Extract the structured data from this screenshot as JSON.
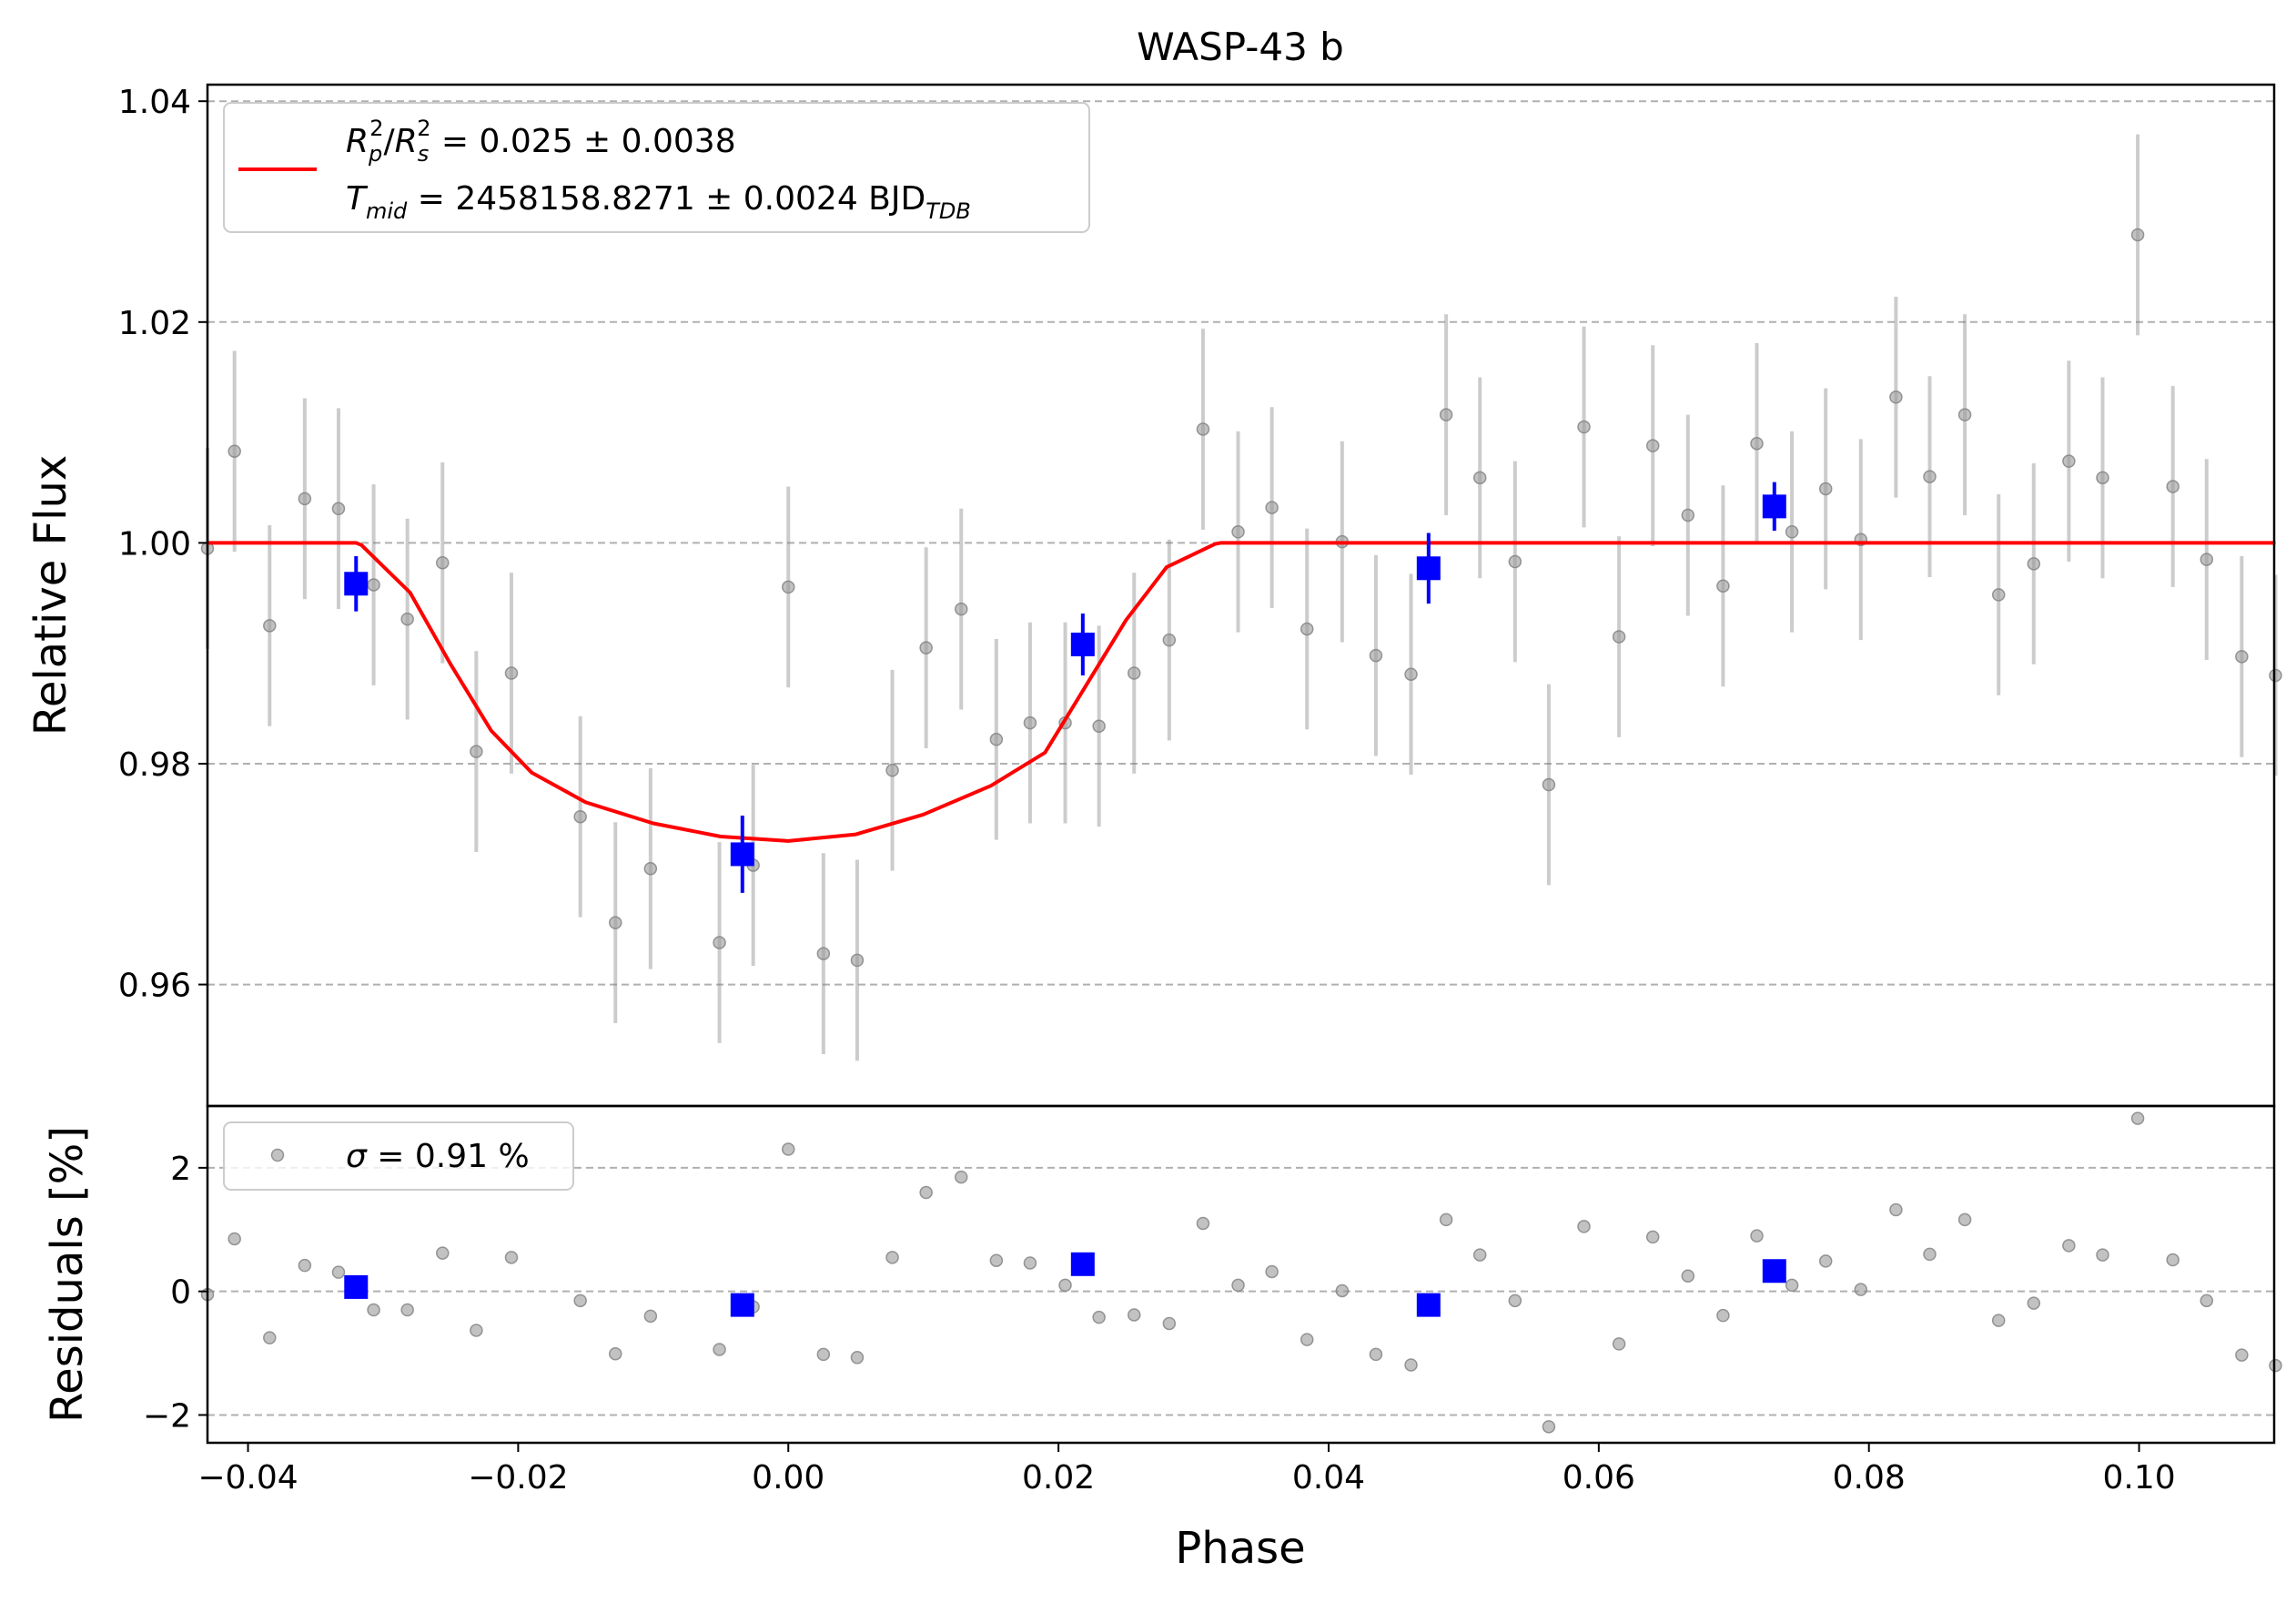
{
  "chart_data": [
    {
      "type": "scatter",
      "panel": "main",
      "title": "WASP-43 b",
      "xlabel": "",
      "ylabel": "Relative Flux",
      "xlim": [
        -0.043,
        0.11
      ],
      "ylim": [
        0.949,
        1.0415
      ],
      "grid": "horizontal dashed",
      "yticks": [
        0.96,
        0.98,
        1.0,
        1.02,
        1.04
      ],
      "ytick_labels": [
        "0.96",
        "0.98",
        "1.00",
        "1.02",
        "1.04"
      ],
      "legend": {
        "placement": "upper-left",
        "line1": "R_p²/R_s² = 0.025 ± 0.0038",
        "line2": "T_mid = 2458158.8271 ± 0.0024 BJD_TDB"
      },
      "series": [
        {
          "kind": "raw",
          "color": "#808080",
          "x": [
            -0.043,
            -0.041,
            -0.0384,
            -0.0358,
            -0.0333,
            -0.0307,
            -0.0282,
            -0.0256,
            -0.0231,
            -0.0205,
            -0.0154,
            -0.0128,
            -0.0102,
            -0.0051,
            -0.0026,
            0.0,
            0.0026,
            0.0051,
            0.0077,
            0.0102,
            0.0128,
            0.0154,
            0.0179,
            0.0205,
            0.023,
            0.0256,
            0.0282,
            0.0307,
            0.0333,
            0.0358,
            0.0384,
            0.041,
            0.0435,
            0.0461,
            0.0487,
            0.0512,
            0.0538,
            0.0563,
            0.0589,
            0.0615,
            0.064,
            0.0666,
            0.0692,
            0.0717,
            0.0743,
            0.0768,
            0.0794,
            0.082,
            0.0845,
            0.0871,
            0.0896,
            0.0922,
            0.0948,
            0.0973,
            0.0999,
            0.1025,
            0.105,
            0.1076,
            0.1101
          ],
          "y": [
            0.9995,
            1.0083,
            0.9925,
            1.004,
            1.0031,
            0.9962,
            0.9931,
            0.9982,
            0.9811,
            0.9882,
            0.9752,
            0.9656,
            0.9705,
            0.9638,
            0.9708,
            0.996,
            0.9628,
            0.9622,
            0.9794,
            0.9905,
            0.994,
            0.9822,
            0.9837,
            0.9837,
            0.9834,
            0.9882,
            0.9912,
            1.0103,
            1.001,
            1.0032,
            0.9922,
            1.0001,
            0.9898,
            0.9881,
            1.0116,
            1.0059,
            0.9983,
            0.9781,
            1.0105,
            0.9915,
            1.0088,
            1.0025,
            0.9961,
            1.009,
            1.001,
            1.0049,
            1.0003,
            1.0132,
            1.006,
            1.0116,
            0.9953,
            0.9981,
            1.0074,
            1.0059,
            1.0279,
            1.0051,
            0.9985,
            0.9897,
            0.988
          ],
          "yerr": 0.0091
        },
        {
          "kind": "binned",
          "color": "#0000ff",
          "x": [
            -0.032,
            -0.0034,
            0.0218,
            0.0474,
            0.073
          ],
          "y": [
            0.9963,
            0.9718,
            0.9908,
            0.9977,
            1.0033
          ],
          "yerr": [
            0.0025,
            0.0035,
            0.0028,
            0.0032,
            0.0022
          ]
        },
        {
          "kind": "model",
          "color": "#ff0000",
          "x": [
            -0.043,
            -0.032,
            -0.0316,
            -0.028,
            -0.025,
            -0.022,
            -0.019,
            -0.015,
            -0.01,
            -0.005,
            0.0,
            0.005,
            0.01,
            0.015,
            0.019,
            0.022,
            0.025,
            0.028,
            0.0316,
            0.032,
            0.1101
          ],
          "y": [
            1.0,
            1.0,
            0.9998,
            0.9955,
            0.989,
            0.983,
            0.9792,
            0.9765,
            0.9746,
            0.9734,
            0.973,
            0.9736,
            0.9754,
            0.978,
            0.981,
            0.987,
            0.993,
            0.9978,
            0.9999,
            1.0,
            1.0
          ]
        }
      ]
    },
    {
      "type": "scatter",
      "panel": "residuals",
      "xlabel": "Phase",
      "ylabel": "Residuals [%]",
      "xlim": [
        -0.043,
        0.11
      ],
      "ylim": [
        -2.45,
        3.0
      ],
      "grid": "horizontal dashed",
      "xticks": [
        -0.04,
        -0.02,
        0.0,
        0.02,
        0.04,
        0.06,
        0.08,
        0.1
      ],
      "xtick_labels": [
        "−0.04",
        "−0.02",
        "0.00",
        "0.02",
        "0.04",
        "0.06",
        "0.08",
        "0.10"
      ],
      "yticks": [
        -2,
        0,
        2
      ],
      "ytick_labels": [
        "−2",
        "0",
        "2"
      ],
      "legend": {
        "placement": "upper-left",
        "label": "σ = 0.91 %"
      },
      "series": [
        {
          "kind": "raw",
          "color": "#808080",
          "x": [
            -0.043,
            -0.041,
            -0.0384,
            -0.0358,
            -0.0333,
            -0.0307,
            -0.0282,
            -0.0256,
            -0.0231,
            -0.0205,
            -0.0154,
            -0.0128,
            -0.0102,
            -0.0051,
            -0.0026,
            0.0,
            0.0026,
            0.0051,
            0.0077,
            0.0102,
            0.0128,
            0.0154,
            0.0179,
            0.0205,
            0.023,
            0.0256,
            0.0282,
            0.0307,
            0.0333,
            0.0358,
            0.0384,
            0.041,
            0.0435,
            0.0461,
            0.0487,
            0.0512,
            0.0538,
            0.0563,
            0.0589,
            0.0615,
            0.064,
            0.0666,
            0.0692,
            0.0717,
            0.0743,
            0.0768,
            0.0794,
            0.082,
            0.0845,
            0.0871,
            0.0896,
            0.0922,
            0.0948,
            0.0973,
            0.0999,
            0.1025,
            0.105,
            0.1076,
            0.1101
          ],
          "y": [
            -0.05,
            0.85,
            -0.75,
            0.42,
            0.31,
            -0.3,
            -0.3,
            0.62,
            -0.63,
            0.55,
            -0.15,
            -1.01,
            -0.4,
            -0.94,
            -0.25,
            2.3,
            -1.02,
            -1.07,
            0.55,
            1.6,
            1.85,
            0.5,
            0.46,
            0.1,
            -0.42,
            -0.38,
            -0.52,
            1.1,
            0.1,
            0.32,
            -0.78,
            0.01,
            -1.02,
            -1.19,
            1.16,
            0.59,
            -0.15,
            -2.19,
            1.05,
            -0.85,
            0.88,
            0.25,
            -0.39,
            0.9,
            0.1,
            0.49,
            0.03,
            1.32,
            0.6,
            1.16,
            -0.47,
            -0.19,
            0.74,
            0.59,
            2.8,
            0.51,
            -0.15,
            -1.03,
            -1.2
          ]
        },
        {
          "kind": "binned",
          "color": "#0000ff",
          "x": [
            -0.032,
            -0.0034,
            0.0218,
            0.0474,
            0.073
          ],
          "y": [
            0.07,
            -0.22,
            0.44,
            -0.22,
            0.33
          ]
        }
      ]
    }
  ]
}
